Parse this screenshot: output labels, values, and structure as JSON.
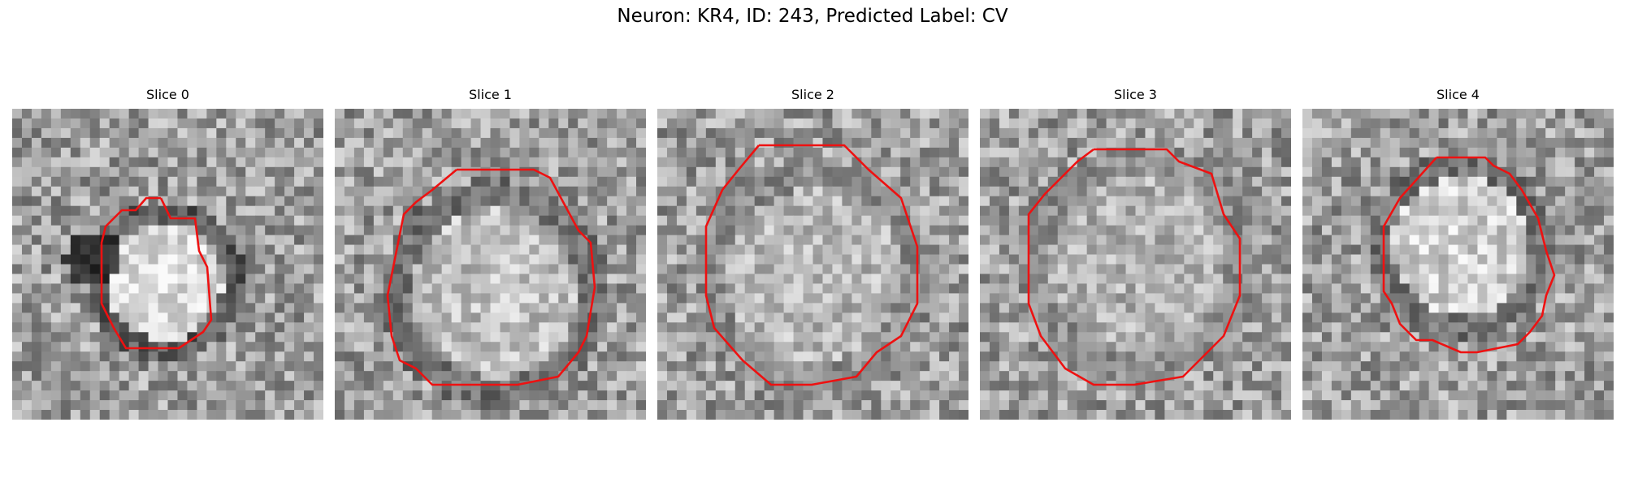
{
  "figure": {
    "title": "Neuron: KR4, ID: 243, Predicted Label: CV"
  },
  "panels": [
    {
      "title": "Slice 0"
    },
    {
      "title": "Slice 1"
    },
    {
      "title": "Slice 2"
    },
    {
      "title": "Slice 3"
    },
    {
      "title": "Slice 4"
    }
  ],
  "colors": {
    "contour": "#ee1111",
    "colormap": "grayscale"
  }
}
